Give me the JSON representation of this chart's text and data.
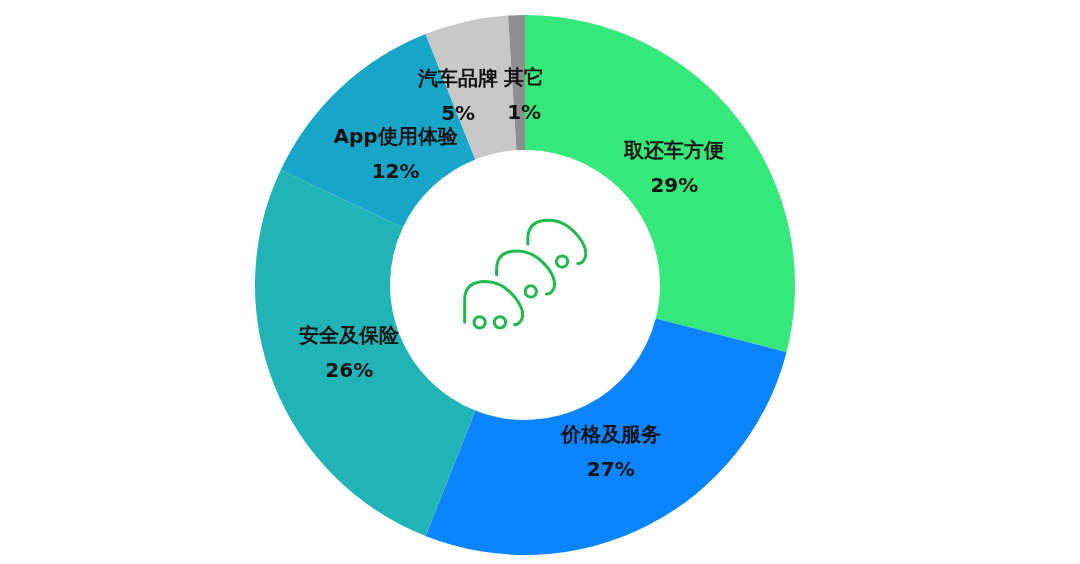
{
  "chart_data": {
    "type": "donut",
    "categories": [
      "取还车方便",
      "价格及服务",
      "安全及保险",
      "App使用体验",
      "汽车品牌",
      "其它"
    ],
    "values": [
      29,
      27,
      26,
      12,
      5,
      1
    ],
    "colors": [
      "#35e87a",
      "#0a84ff",
      "#20b4b6",
      "#18a6c8",
      "#c8c8c8",
      "#8e8e8e"
    ],
    "value_labels": [
      "29%",
      "27%",
      "26%",
      "12%",
      "5%",
      "1%"
    ],
    "legend": false
  }
}
